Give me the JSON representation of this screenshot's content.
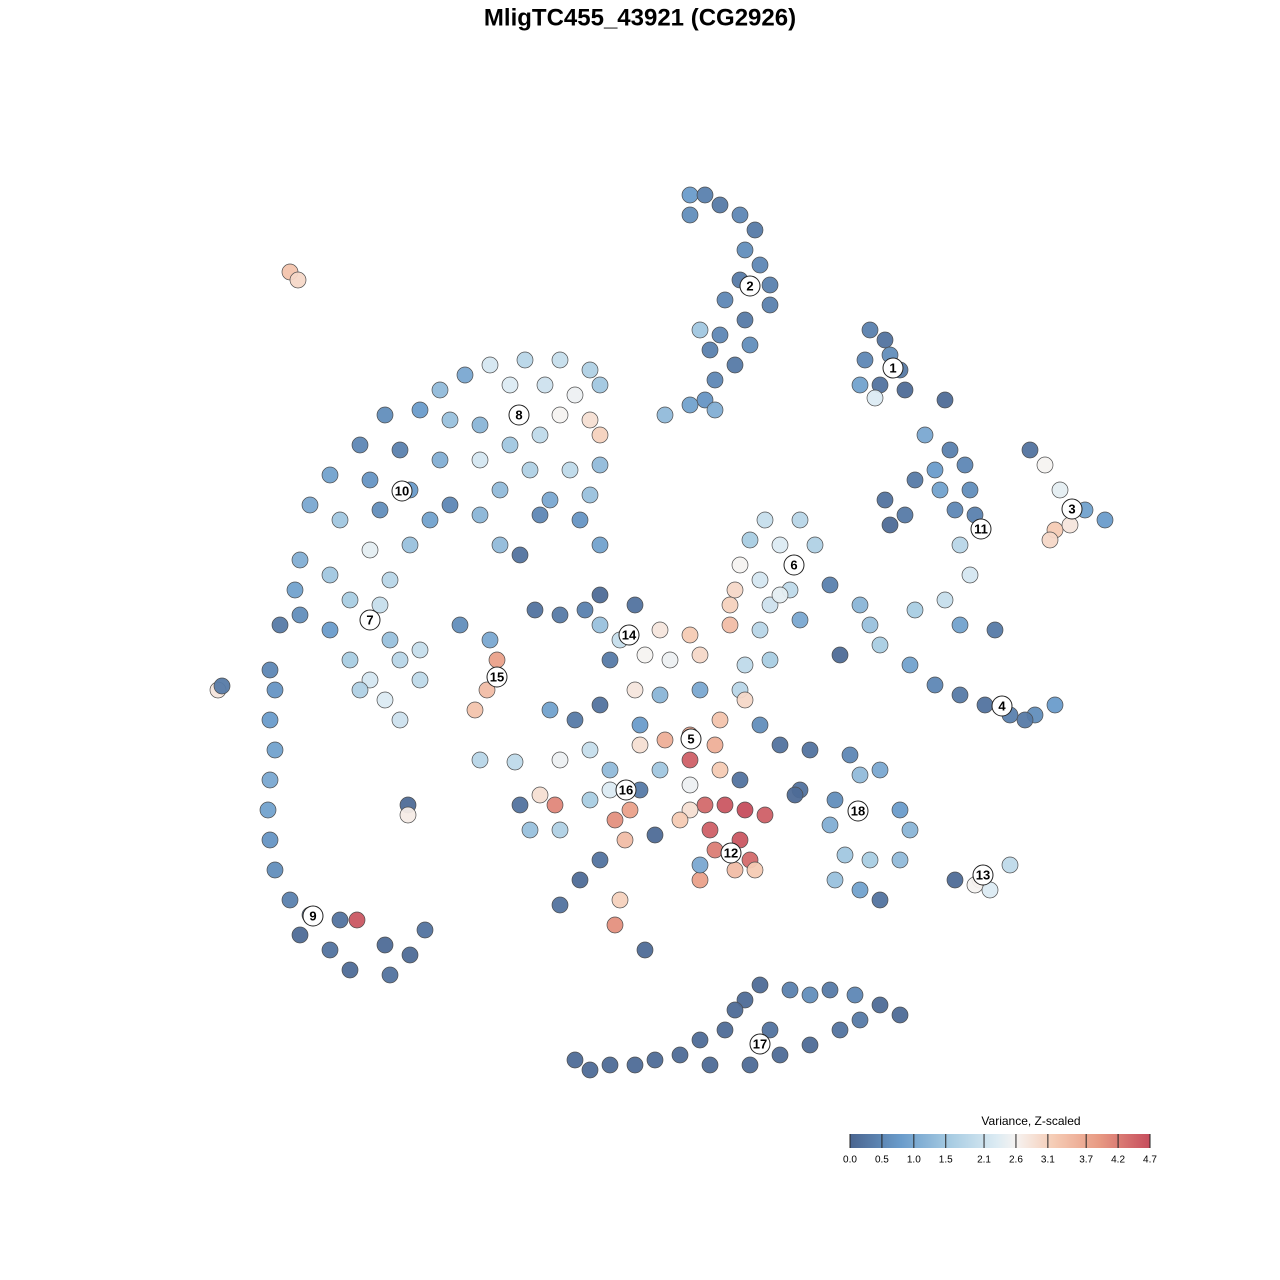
{
  "chart_data": {
    "type": "scatter",
    "title": "MligTC455_43921 (CG2926)",
    "legend_title": "Variance, Z-scaled",
    "xlim": [
      0,
      100
    ],
    "ylim": [
      0,
      100
    ],
    "clim": [
      0,
      4.7
    ],
    "colorscale": [
      [
        0,
        "#4a6590"
      ],
      [
        0.8,
        "#6a9ccb"
      ],
      [
        1.6,
        "#a9cde3"
      ],
      [
        2.3,
        "#dcebf3"
      ],
      [
        2.6,
        "#f6f3f1"
      ],
      [
        3.2,
        "#f5cbb4"
      ],
      [
        3.9,
        "#e89a83"
      ],
      [
        4.7,
        "#c64d5d"
      ]
    ],
    "cticks": [
      {
        "value": 0,
        "label": "0.0"
      },
      0.5,
      {
        "value": 1,
        "label": "1.0"
      },
      1.5,
      2.1,
      2.6,
      3.1,
      3.7,
      4.2,
      4.7
    ],
    "x": [
      53,
      54.5,
      56,
      53,
      58,
      59.5,
      58.5,
      60,
      61,
      58,
      56.5,
      61,
      58.5,
      56,
      59,
      55,
      57.5,
      55.5,
      54.5,
      53,
      50.5,
      55.5,
      54,
      71,
      72.5,
      70.5,
      74,
      72,
      70,
      71.5,
      74.5,
      78.5,
      73,
      76.5,
      79,
      77.5,
      80.5,
      75.5,
      72.5,
      74.5,
      78,
      81,
      79.5,
      73,
      81.5,
      80,
      81,
      78.5,
      75.5,
      80,
      83.5,
      87,
      88.5,
      90,
      89.5,
      91,
      92.5,
      94.5,
      89,
      70,
      71,
      72,
      75,
      77.5,
      80,
      82.5,
      85,
      87.5,
      89.5,
      86.5,
      68,
      60.5,
      64,
      59,
      62,
      65.5,
      58,
      60,
      63,
      67,
      57.5,
      57,
      61,
      64,
      60,
      62,
      33,
      36.5,
      40,
      43,
      44,
      30.5,
      28,
      35,
      38.5,
      41.5,
      43,
      44,
      40,
      26,
      22.5,
      29,
      32,
      38,
      35,
      20,
      24,
      28,
      32,
      37,
      41,
      44,
      17,
      21,
      25,
      29,
      34,
      39,
      43,
      15,
      18,
      22,
      27,
      32,
      38,
      42,
      44,
      34,
      36,
      14,
      17,
      21,
      23,
      25,
      13.5,
      19,
      22,
      14,
      17,
      12,
      23,
      26,
      19,
      24,
      21,
      26,
      22.5,
      24,
      20,
      11,
      11.5,
      11,
      11.5,
      11,
      10.8,
      11,
      11.5,
      13,
      15,
      18,
      19.7,
      14,
      17,
      19,
      23,
      25,
      26.5,
      22.5,
      13,
      13.8,
      5.8,
      6.2,
      24.8,
      24.8,
      30,
      33,
      33.7,
      32.7,
      31.5,
      32,
      35.5,
      37.5,
      40,
      42.5,
      44,
      47.5,
      44,
      46,
      45,
      48.5,
      50,
      53,
      54,
      51,
      57,
      58.5,
      61,
      47.5,
      50,
      54,
      58,
      56,
      55.5,
      53,
      56,
      60,
      62,
      39,
      41.5,
      44,
      48,
      50.5,
      48,
      43,
      40,
      45,
      50,
      58.5,
      53,
      36,
      38,
      39.5,
      37,
      40,
      43,
      45,
      45.5,
      47,
      48,
      46.5,
      44,
      42,
      40,
      46,
      45.5,
      49.5,
      48.5,
      53,
      54.5,
      56.5,
      58.5,
      60.5,
      53,
      55,
      58,
      55.5,
      59,
      54,
      57.5,
      59.5,
      52,
      58,
      54,
      65,
      69,
      72,
      70,
      64,
      67.5,
      74,
      75,
      67,
      68.5,
      71,
      74,
      67.5,
      70,
      72,
      63.5,
      79.5,
      82,
      83,
      85,
      81.5,
      41.5,
      43,
      45,
      47.5,
      49.5,
      52,
      55,
      54,
      56.5,
      58.5,
      60,
      63,
      65,
      67,
      69.5,
      72,
      74,
      68,
      65,
      62,
      59,
      61,
      57.5,
      70
    ],
    "y": [
      93.5,
      93.5,
      92.5,
      91.5,
      91.5,
      90,
      88,
      86.5,
      84.5,
      85,
      83,
      82.5,
      81,
      79.5,
      78.5,
      78,
      76.5,
      75,
      73,
      72.5,
      71.5,
      72,
      80,
      80,
      79,
      77,
      76,
      74.5,
      74.5,
      73.2,
      74,
      73,
      77.5,
      69.5,
      68,
      66,
      66.5,
      65,
      63,
      61.5,
      64,
      64,
      62,
      60.5,
      61.5,
      58.5,
      55.5,
      53,
      52,
      50.5,
      50,
      68,
      66.5,
      64,
      60,
      60.5,
      62,
      61,
      59,
      52.5,
      50.5,
      48.5,
      46.5,
      44.5,
      43.5,
      42.5,
      41.5,
      41.5,
      42.5,
      41,
      47.5,
      61,
      61,
      59,
      58.5,
      58.5,
      56.5,
      55,
      54,
      54.5,
      54,
      52.5,
      52.5,
      51,
      50,
      53.5,
      76.5,
      77,
      77,
      76,
      74.5,
      75.5,
      74,
      74.5,
      74.5,
      73.5,
      71,
      69.5,
      71.5,
      72,
      71.5,
      71,
      70.5,
      69.5,
      68.5,
      68.5,
      68,
      67,
      67,
      66,
      66,
      66.5,
      65.5,
      65,
      64,
      62.5,
      64,
      63,
      63.5,
      62.5,
      61,
      62,
      61,
      61.5,
      61.5,
      61,
      58.5,
      58.5,
      57.5,
      57,
      55.5,
      58,
      55,
      58.5,
      54,
      53,
      52.5,
      51.5,
      50,
      50.5,
      49,
      48,
      47,
      47,
      45,
      45,
      43,
      41,
      44,
      46,
      44,
      41,
      38,
      35,
      32,
      29,
      26,
      23,
      21.5,
      21,
      21,
      19.5,
      18,
      16,
      15.5,
      17.5,
      20,
      18.5,
      85.8,
      85,
      44,
      44.4,
      32.5,
      31.5,
      50.5,
      49,
      47,
      44,
      42,
      37,
      36.8,
      52,
      51.5,
      52,
      53.5,
      52.5,
      50.5,
      49,
      47,
      47.5,
      50,
      49.5,
      47.5,
      47,
      50.5,
      46.5,
      47,
      44,
      43.5,
      44,
      44,
      41,
      38.5,
      37,
      36,
      40.5,
      38.5,
      42,
      41,
      42.5,
      40.5,
      39,
      38.5,
      38,
      37,
      36,
      36,
      43,
      39.5,
      32.5,
      33.5,
      32.5,
      30,
      30,
      33,
      34,
      31,
      32,
      34,
      29,
      27,
      25,
      22.5,
      23,
      20.5,
      29.5,
      18,
      34.5,
      32.5,
      32.5,
      32,
      31.5,
      32,
      30,
      29,
      28,
      27,
      25,
      26,
      26,
      31,
      35,
      26.5,
      38,
      37.5,
      36,
      35.5,
      34,
      33,
      32,
      30,
      30.5,
      27.5,
      27,
      27,
      25,
      24,
      23,
      33.5,
      25,
      25,
      24,
      26.5,
      24.5,
      7,
      6,
      6.5,
      6.5,
      7,
      7.5,
      6.5,
      9,
      10,
      13,
      14.5,
      14,
      13.5,
      14,
      13.5,
      12.5,
      11.5,
      10,
      8.5,
      7.5,
      6.5,
      10,
      12,
      11
    ],
    "values": [
      0.8,
      0.4,
      0.3,
      0.6,
      0.5,
      0.3,
      0.6,
      0.5,
      0.4,
      0.3,
      0.5,
      0.4,
      0.3,
      0.5,
      0.6,
      0.4,
      0.3,
      0.5,
      0.7,
      0.9,
      1.3,
      1.1,
      1.5,
      0.4,
      0.2,
      0.5,
      0.3,
      0.2,
      0.9,
      2.3,
      0.1,
      0.1,
      0.6,
      1.0,
      0.4,
      0.8,
      0.5,
      0.3,
      0.2,
      0.3,
      0.9,
      0.6,
      0.5,
      0.1,
      0.4,
      1.8,
      2.2,
      2.0,
      1.6,
      0.9,
      0.3,
      0.2,
      2.6,
      2.4,
      3.2,
      2.8,
      0.9,
      0.8,
      3.0,
      1.2,
      1.4,
      1.6,
      0.9,
      0.5,
      0.3,
      0.2,
      0.4,
      0.6,
      0.8,
      0.3,
      0.1,
      2.0,
      1.8,
      1.6,
      2.3,
      1.7,
      2.6,
      2.2,
      1.9,
      0.4,
      3.0,
      3.1,
      2.1,
      1.0,
      1.8,
      2.4,
      2.2,
      1.8,
      2.0,
      1.7,
      1.5,
      1.0,
      1.3,
      2.3,
      2.1,
      2.5,
      2.9,
      3.1,
      2.6,
      0.8,
      0.6,
      1.4,
      1.2,
      1.9,
      1.5,
      0.5,
      0.4,
      1.1,
      2.2,
      1.7,
      1.9,
      1.3,
      0.9,
      0.7,
      0.8,
      0.5,
      1.3,
      1.0,
      1.4,
      1.0,
      1.5,
      0.6,
      0.9,
      1.2,
      0.5,
      0.7,
      0.9,
      1.3,
      0.2,
      1.1,
      1.5,
      2.4,
      1.8,
      1.4,
      0.9,
      1.6,
      2.0,
      0.6,
      0.8,
      0.3,
      1.4,
      2.0,
      1.6,
      1.8,
      2.2,
      1.9,
      2.3,
      2.1,
      1.7,
      0.5,
      0.7,
      0.8,
      0.9,
      1.0,
      0.9,
      0.7,
      0.6,
      0.4,
      0.3,
      0.2,
      4.6,
      0.1,
      0.2,
      0.1,
      0.2,
      0.1,
      0.2,
      0.1,
      3.3,
      3.0,
      2.8,
      0.3,
      0.1,
      2.7,
      0.6,
      1.0,
      3.8,
      3.4,
      3.3,
      1.8,
      1.9,
      0.2,
      0.3,
      0.4,
      0.1,
      0.2,
      1.4,
      2.0,
      0.3,
      2.6,
      2.8,
      3.2,
      3.0,
      2.5,
      3.4,
      1.9,
      1.6,
      2.8,
      1.2,
      1.0,
      1.8,
      3.3,
      3.6,
      4.5,
      3.2,
      0.6,
      0.2,
      0.9,
      0.3,
      0.2,
      0.8,
      3.6,
      2.9,
      2.0,
      2.5,
      1.3,
      1.5,
      3.0,
      3.7,
      0.2,
      2.9,
      4.1,
      1.4,
      1.7,
      1.6,
      2.3,
      4.0,
      3.8,
      0.3,
      3.4,
      0.2,
      0.1,
      0.2,
      3.1,
      4.0,
      0.1,
      0.1,
      2.5,
      4.4,
      4.6,
      4.7,
      4.5,
      2.9,
      4.5,
      4.6,
      4.2,
      4.4,
      3.8,
      3.4,
      3.2,
      3.2,
      0.2,
      1.0,
      0.2,
      0.5,
      1.0,
      1.3,
      0.2,
      0.6,
      0.8,
      1.2,
      1.1,
      1.5,
      1.6,
      1.3,
      1.4,
      0.9,
      0.2,
      0.1,
      0.1,
      3.1,
      2.3,
      1.9,
      2.6,
      0.1,
      0.1,
      0.1,
      0.1,
      0.1,
      0.1,
      0.1,
      0.1,
      0.1,
      0.1,
      0.1,
      0.4,
      0.6,
      0.3,
      0.5,
      0.1,
      0.1,
      0.2,
      0.1,
      0.1,
      0.1,
      0.2,
      0.1,
      0.3
    ],
    "cluster_labels": [
      {
        "text": "1",
        "x": 73.3,
        "y": 76.2
      },
      {
        "text": "2",
        "x": 59,
        "y": 84.4
      },
      {
        "text": "3",
        "x": 91.2,
        "y": 62.1
      },
      {
        "text": "4",
        "x": 84.2,
        "y": 42.4
      },
      {
        "text": "5",
        "x": 53.1,
        "y": 39.1
      },
      {
        "text": "6",
        "x": 63.4,
        "y": 56.5
      },
      {
        "text": "7",
        "x": 21,
        "y": 51
      },
      {
        "text": "8",
        "x": 35.9,
        "y": 71.5
      },
      {
        "text": "9",
        "x": 15.3,
        "y": 21.4
      },
      {
        "text": "10",
        "x": 24.2,
        "y": 63.9
      },
      {
        "text": "11",
        "x": 82.1,
        "y": 60.1
      },
      {
        "text": "12",
        "x": 57.1,
        "y": 27.7
      },
      {
        "text": "13",
        "x": 82.3,
        "y": 25.5
      },
      {
        "text": "14",
        "x": 46.9,
        "y": 49.5
      },
      {
        "text": "15",
        "x": 33.7,
        "y": 45.3
      },
      {
        "text": "16",
        "x": 46.6,
        "y": 34
      },
      {
        "text": "17",
        "x": 60,
        "y": 8.6
      },
      {
        "text": "18",
        "x": 69.8,
        "y": 31.9
      }
    ]
  }
}
